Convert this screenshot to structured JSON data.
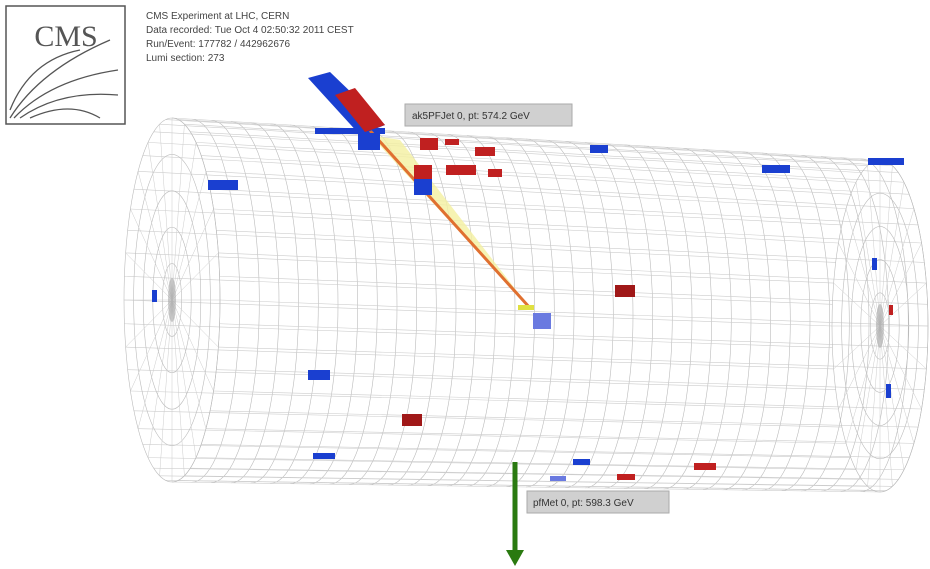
{
  "header": {
    "logo": "CMS",
    "lines": [
      "CMS Experiment at LHC, CERN",
      "Data recorded: Tue Oct  4 02:50:32 2011 CEST",
      "Run/Event: 177782 / 442962676",
      "Lumi section: 273"
    ]
  },
  "labels": {
    "jet": "ak5PFJet 0, pt: 574.2 GeV",
    "met": "pfMet 0, pt: 598.3 GeV"
  }
}
